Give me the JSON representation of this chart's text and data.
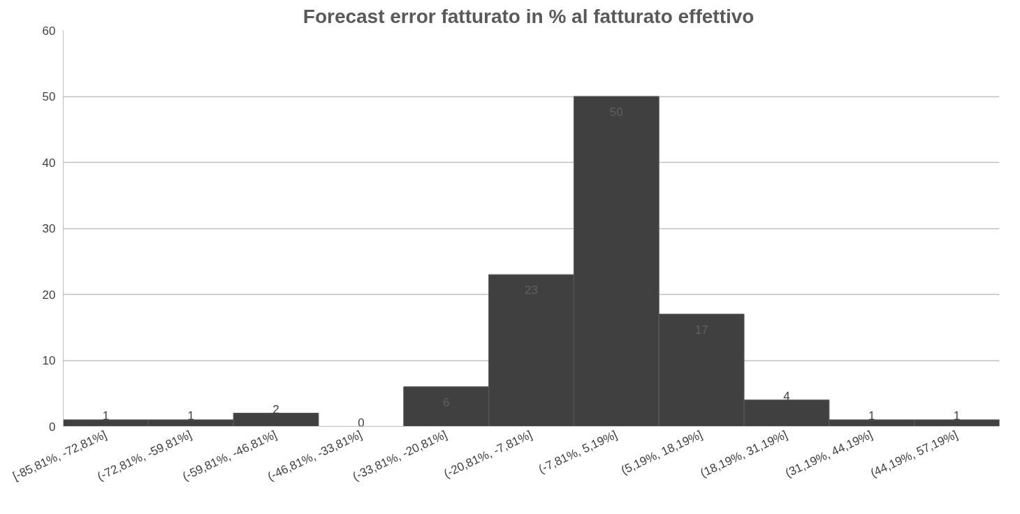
{
  "chart_data": {
    "type": "bar",
    "title": "Forecast error fatturato in %  al fatturato effettivo",
    "categories": [
      "[-85,81%, -72,81%]",
      "(-72,81%, -59,81%]",
      "(-59,81%, -46,81%]",
      "(-46,81%, -33,81%]",
      "(-33,81%, -20,81%]",
      "(-20,81%, -7,81%]",
      "(-7,81%, 5,19%]",
      "(5,19%, 18,19%]",
      "(18,19%, 31,19%]",
      "(31,19%, 44,19%]",
      "(44,19%, 57,19%]"
    ],
    "values": [
      1,
      1,
      2,
      0,
      6,
      23,
      50,
      17,
      4,
      1,
      1
    ],
    "color": "#404040",
    "ylim": [
      0,
      60
    ],
    "yticks": [
      0,
      10,
      20,
      30,
      40,
      50,
      60
    ],
    "grid": "y",
    "data_labels": true
  }
}
